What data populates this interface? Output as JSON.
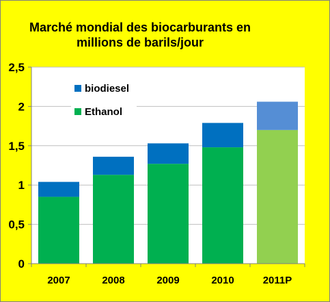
{
  "chart_data": {
    "type": "bar",
    "stacked": true,
    "title_lines": [
      "Marché mondial des biocarburants en",
      "millions de barils/jour"
    ],
    "categories": [
      "2007",
      "2008",
      "2009",
      "2010",
      "2011P"
    ],
    "series": [
      {
        "name": "Ethanol",
        "color": "#00b050",
        "values": [
          0.85,
          1.13,
          1.27,
          1.48,
          1.7
        ],
        "projected_color": "#92d050"
      },
      {
        "name": "biodiesel",
        "color": "#0070c0",
        "values": [
          0.19,
          0.23,
          0.26,
          0.31,
          0.36
        ],
        "projected_color": "#558ed5"
      }
    ],
    "projected_categories": [
      "2011P"
    ],
    "ylim": [
      0,
      2.5
    ],
    "yticks": [
      0,
      0.5,
      1,
      1.5,
      2,
      2.5
    ],
    "ytick_labels": [
      "0",
      "0,5",
      "1",
      "1,5",
      "2",
      "2,5"
    ],
    "grid": "horizontal",
    "legend": {
      "position": "top-left",
      "order": [
        "biodiesel",
        "Ethanol"
      ]
    },
    "xlabel": "",
    "ylabel": ""
  }
}
